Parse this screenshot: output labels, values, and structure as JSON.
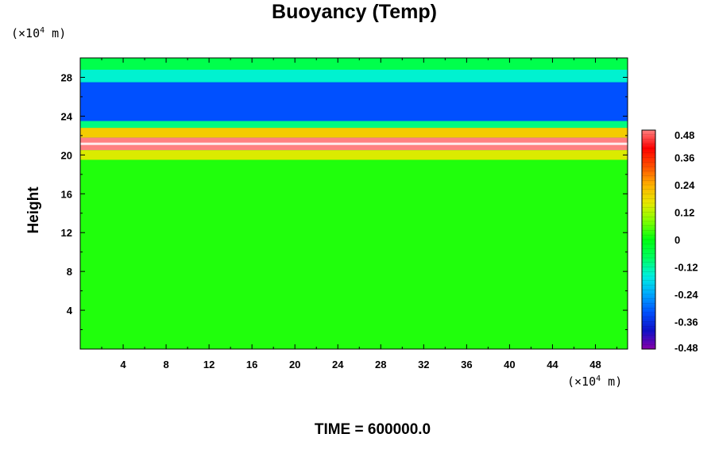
{
  "chart_data": {
    "type": "heatmap",
    "title": "Buoyancy (Temp)",
    "ylabel": "Height",
    "xlabel": "",
    "x_unit_prefix": "(×10",
    "x_unit_exp": "4",
    "x_unit_suffix": " m)",
    "y_unit_prefix": "(×10",
    "y_unit_exp": "4",
    "y_unit_suffix": " m)",
    "xlim": [
      0,
      51
    ],
    "ylim": [
      0,
      30
    ],
    "x_ticks": [
      4,
      8,
      12,
      16,
      20,
      24,
      28,
      32,
      36,
      40,
      44,
      48
    ],
    "y_ticks": [
      4,
      8,
      12,
      16,
      20,
      24,
      28
    ],
    "colorbar": {
      "min": -0.48,
      "max": 0.48,
      "tick_values": [
        0.48,
        0.36,
        0.24,
        0.12,
        0,
        -0.12,
        -0.24,
        -0.36,
        -0.48
      ],
      "tick_labels": [
        "0.48",
        "0.36",
        "0.24",
        "0.12",
        "0",
        "-0.12",
        "-0.24",
        "-0.36",
        "-0.48"
      ]
    },
    "bands": [
      {
        "height_range": [
          0,
          19.5
        ],
        "value": 0.02
      },
      {
        "height_range": [
          19.5,
          20.5
        ],
        "value": 0.15
      },
      {
        "height_range": [
          20.5,
          21.8
        ],
        "value": 0.48
      },
      {
        "height_range": [
          21.8,
          22.8
        ],
        "value": 0.2
      },
      {
        "height_range": [
          22.8,
          23.5
        ],
        "value": -0.1
      },
      {
        "height_range": [
          23.5,
          27.5
        ],
        "value": -0.32
      },
      {
        "height_range": [
          27.5,
          28.8
        ],
        "value": -0.15
      },
      {
        "height_range": [
          28.8,
          30
        ],
        "value": -0.06
      }
    ]
  },
  "footer": {
    "time_label": "TIME = 600000.0"
  },
  "colors": {
    "background_field": "#00ff22",
    "colorbar": [
      "#8800aa",
      "#1010c8",
      "#0050ff",
      "#00a8ff",
      "#00f0e0",
      "#00ff60",
      "#00ff10",
      "#80ff00",
      "#e8e800",
      "#ffb000",
      "#ff5000",
      "#ff0000",
      "#ff8080"
    ]
  }
}
